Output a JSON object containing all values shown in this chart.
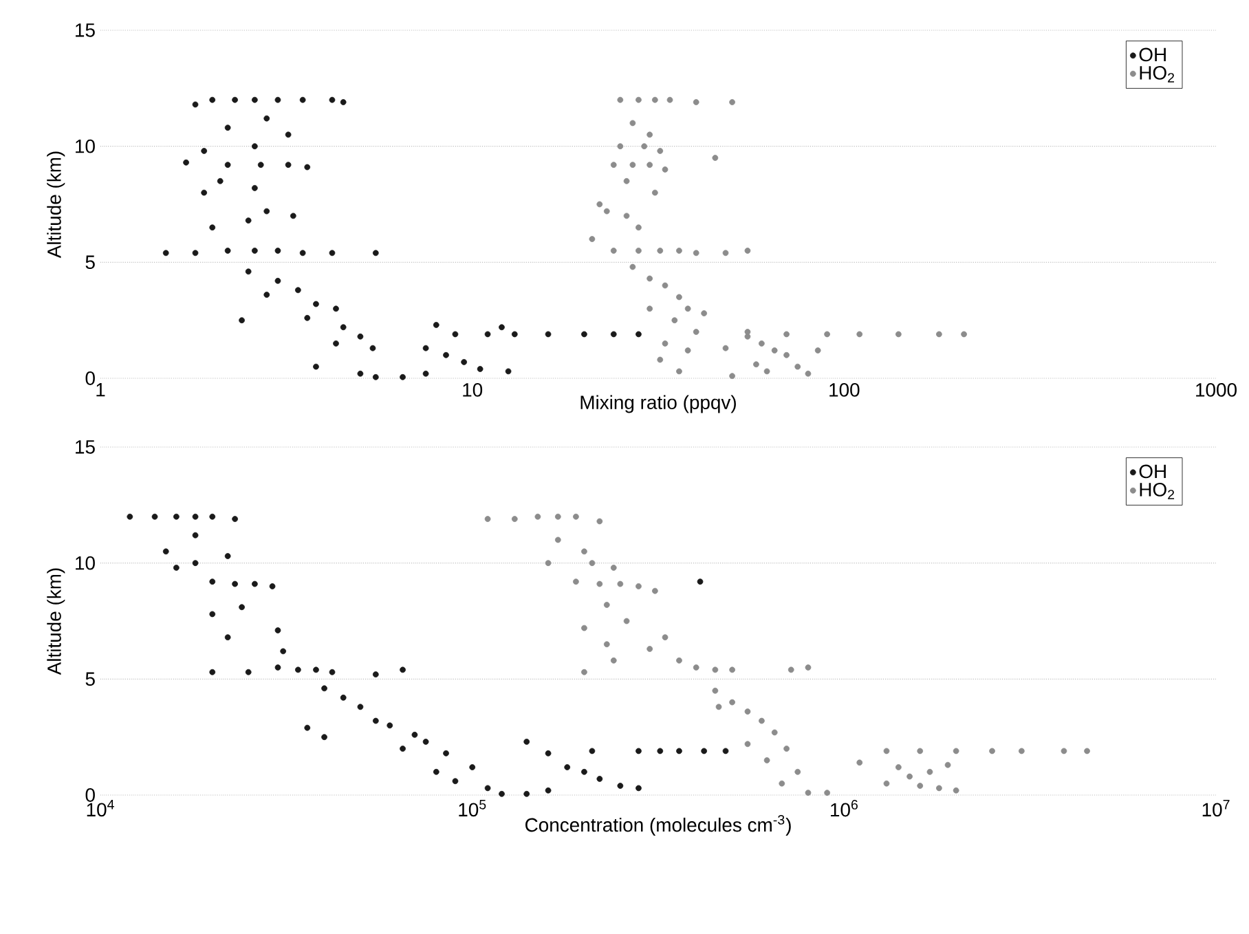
{
  "chart_data": [
    {
      "type": "scatter",
      "xlabel": "Mixing ratio (ppqv)",
      "ylabel": "Altitude (km)",
      "log": "x",
      "grid": "y",
      "legend": "top right",
      "xlim": [
        1,
        1000
      ],
      "xticks": [
        1,
        10,
        100,
        1000
      ],
      "ylim": [
        0,
        15
      ],
      "yticks": [
        0,
        5,
        10,
        15
      ],
      "series": [
        {
          "name": "OH",
          "color": "#1a1a1a",
          "x": [
            2.0,
            2.3,
            2.6,
            3.0,
            3.5,
            4.2,
            4.5,
            1.8,
            2.8,
            2.2,
            2.6,
            3.2,
            1.9,
            1.7,
            2.2,
            2.7,
            3.2,
            3.6,
            2.6,
            2.1,
            1.9,
            2.8,
            3.3,
            2.5,
            2.0,
            1.5,
            1.8,
            2.2,
            2.6,
            3.0,
            3.5,
            4.2,
            5.5,
            2.5,
            3.0,
            3.4,
            2.8,
            3.8,
            4.3,
            3.6,
            2.4,
            4.5,
            5.0,
            4.3,
            5.4,
            3.8,
            5.0,
            5.5,
            6.5,
            7.5,
            7.5,
            8.5,
            9.0,
            11,
            9.5,
            10.5,
            12.5,
            8.0,
            13,
            16,
            20,
            24,
            28,
            12
          ],
          "values": [
            12,
            12,
            12,
            12,
            12,
            12,
            11.9,
            11.8,
            11.2,
            10.8,
            10,
            10.5,
            9.8,
            9.3,
            9.2,
            9.2,
            9.2,
            9.1,
            8.2,
            8.5,
            8,
            7.2,
            7,
            6.8,
            6.5,
            5.4,
            5.4,
            5.5,
            5.5,
            5.5,
            5.4,
            5.4,
            5.4,
            4.6,
            4.2,
            3.8,
            3.6,
            3.2,
            3.0,
            2.6,
            2.5,
            2.2,
            1.8,
            1.5,
            1.3,
            0.5,
            0.2,
            0.05,
            0.05,
            0.2,
            1.3,
            1.0,
            1.9,
            1.9,
            0.7,
            0.4,
            0.3,
            2.3,
            1.9,
            1.9,
            1.9,
            1.9,
            1.9,
            2.2
          ]
        },
        {
          "name": "HO$_{2}$",
          "color": "#8c8c8c",
          "x": [
            25,
            28,
            31,
            34,
            40,
            50,
            27,
            30,
            25,
            29,
            32,
            24,
            27,
            30,
            33,
            45,
            26,
            31,
            22,
            23,
            26,
            28,
            21,
            24,
            28,
            32,
            36,
            40,
            48,
            55,
            27,
            30,
            33,
            36,
            30,
            38,
            42,
            35,
            40,
            33,
            38,
            32,
            36,
            50,
            48,
            55,
            60,
            65,
            70,
            58,
            62,
            75,
            80,
            70,
            90,
            110,
            140,
            180,
            210,
            85,
            55
          ],
          "values": [
            12,
            12,
            12,
            12,
            11.9,
            11.9,
            11,
            10.5,
            10,
            10,
            9.8,
            9.2,
            9.2,
            9.2,
            9,
            9.5,
            8.5,
            8,
            7.5,
            7.2,
            7,
            6.5,
            6,
            5.5,
            5.5,
            5.5,
            5.5,
            5.4,
            5.4,
            5.5,
            4.8,
            4.3,
            4,
            3.5,
            3,
            3,
            2.8,
            2.5,
            2,
            1.5,
            1.2,
            0.8,
            0.3,
            0.1,
            1.3,
            1.8,
            1.5,
            1.2,
            1.0,
            0.6,
            0.3,
            0.5,
            0.2,
            1.9,
            1.9,
            1.9,
            1.9,
            1.9,
            1.9,
            1.2,
            2.0
          ]
        }
      ]
    },
    {
      "type": "scatter",
      "xlabel": "Concentration (molecules cm$^{-3}$)",
      "ylabel": "Altitude (km)",
      "log": "x",
      "grid": "y",
      "legend": "top right",
      "xlim": [
        10000,
        10000000
      ],
      "xticks": [
        {
          "value": 10000,
          "label": "10$^{4}$"
        },
        {
          "value": 100000,
          "label": "10$^{5}$"
        },
        {
          "value": 1000000,
          "label": "10$^{6}$"
        },
        {
          "value": 10000000,
          "label": "10$^{7}$"
        }
      ],
      "ylim": [
        0,
        15
      ],
      "yticks": [
        0,
        5,
        10,
        15
      ],
      "series": [
        {
          "name": "OH",
          "color": "#1a1a1a",
          "x": [
            12000,
            14000,
            16000,
            18000,
            20000,
            23000,
            18000,
            15000,
            16000,
            18000,
            22000,
            20000,
            23000,
            26000,
            29000,
            24000,
            20000,
            22000,
            30000,
            31000,
            20000,
            25000,
            30000,
            34000,
            38000,
            42000,
            55000,
            65000,
            40000,
            45000,
            50000,
            36000,
            40000,
            55000,
            60000,
            70000,
            65000,
            75000,
            85000,
            80000,
            90000,
            100000,
            110000,
            120000,
            140000,
            160000,
            160000,
            180000,
            200000,
            210000,
            220000,
            250000,
            280000,
            140000,
            280000,
            320000,
            360000,
            420000,
            480000,
            410000
          ],
          "values": [
            12,
            12,
            12,
            12,
            12,
            11.9,
            11.2,
            10.5,
            9.8,
            10,
            10.3,
            9.2,
            9.1,
            9.1,
            9.0,
            8.1,
            7.8,
            6.8,
            7.1,
            6.2,
            5.3,
            5.3,
            5.5,
            5.4,
            5.4,
            5.3,
            5.2,
            5.4,
            4.6,
            4.2,
            3.8,
            2.9,
            2.5,
            3.2,
            3.0,
            2.6,
            2.0,
            2.3,
            1.8,
            1.0,
            0.6,
            1.2,
            0.3,
            0.05,
            0.05,
            0.2,
            1.8,
            1.2,
            1.0,
            1.9,
            0.7,
            0.4,
            0.3,
            2.3,
            1.9,
            1.9,
            1.9,
            1.9,
            1.9,
            9.2
          ]
        },
        {
          "name": "HO$_{2}$",
          "color": "#8c8c8c",
          "x": [
            130000,
            150000,
            170000,
            190000,
            220000,
            170000,
            200000,
            160000,
            210000,
            240000,
            190000,
            220000,
            250000,
            280000,
            310000,
            230000,
            260000,
            200000,
            230000,
            200000,
            240000,
            300000,
            330000,
            360000,
            400000,
            450000,
            500000,
            720000,
            800000,
            450000,
            500000,
            550000,
            460000,
            600000,
            650000,
            550000,
            700000,
            620000,
            750000,
            680000,
            800000,
            900000,
            1100000,
            1300000,
            1300000,
            1400000,
            1500000,
            1600000,
            1700000,
            1800000,
            2000000,
            1900000,
            1600000,
            2000000,
            2500000,
            3000000,
            3900000,
            4500000,
            110000
          ],
          "values": [
            11.9,
            12,
            12,
            12,
            11.8,
            11,
            10.5,
            10,
            10,
            9.8,
            9.2,
            9.1,
            9.1,
            9.0,
            8.8,
            8.2,
            7.5,
            7.2,
            6.5,
            5.3,
            5.8,
            6.3,
            6.8,
            5.8,
            5.5,
            5.4,
            5.4,
            5.4,
            5.5,
            4.5,
            4.0,
            3.6,
            3.8,
            3.2,
            2.7,
            2.2,
            2.0,
            1.5,
            1.0,
            0.5,
            0.1,
            0.1,
            1.4,
            1.9,
            0.5,
            1.2,
            0.8,
            0.4,
            1.0,
            0.3,
            0.2,
            1.3,
            1.9,
            1.9,
            1.9,
            1.9,
            1.9,
            1.9,
            11.9
          ]
        }
      ]
    }
  ]
}
